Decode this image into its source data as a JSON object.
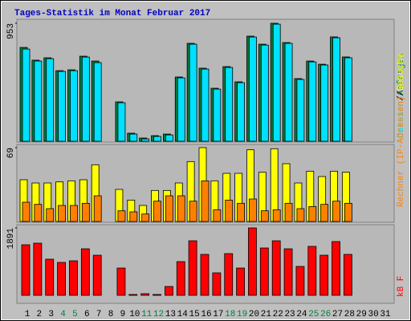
{
  "chart_data": [
    {
      "type": "bar",
      "title": "Tages-Statistik im Monat Februar 2017",
      "categories": [
        "1",
        "2",
        "3",
        "4",
        "5",
        "6",
        "7",
        "8",
        "9",
        "10",
        "11",
        "12",
        "13",
        "14",
        "15",
        "16",
        "17",
        "18",
        "19",
        "20",
        "21",
        "22",
        "23",
        "24",
        "25",
        "26",
        "27",
        "28",
        "29",
        "30",
        "31"
      ],
      "category_colors": [
        "#000000",
        "#000000",
        "#000000",
        "#008040",
        "#008040",
        "#000000",
        "#000000",
        "#000000",
        "#000000",
        "#000000",
        "#008040",
        "#008040",
        "#000000",
        "#000000",
        "#000000",
        "#000000",
        "#000000",
        "#008040",
        "#008040",
        "#000000",
        "#000000",
        "#000000",
        "#000000",
        "#000000",
        "#008040",
        "#008040",
        "#000000",
        "#000000",
        "#000000",
        "#000000",
        "#000000"
      ],
      "legend_separator": "/",
      "ylim": [
        0,
        953
      ],
      "yticks": [
        953
      ],
      "series": [
        {
          "name": "Anfragen",
          "color": "#008040",
          "values": [
            758,
            655,
            674,
            570,
            577,
            687,
            648,
            0,
            318,
            65,
            26,
            45,
            58,
            519,
            791,
            590,
            428,
            603,
            480,
            849,
            784,
            953,
            797,
            506,
            648,
            622,
            843,
            681,
            0,
            0,
            0
          ]
        },
        {
          "name": "Dateien",
          "color": "#00e0ff",
          "values": [
            745,
            648,
            667,
            564,
            570,
            680,
            635,
            0,
            311,
            58,
            19,
            39,
            51,
            512,
            784,
            583,
            421,
            596,
            473,
            842,
            777,
            946,
            791,
            499,
            641,
            616,
            836,
            674,
            0,
            0,
            0
          ]
        }
      ]
    },
    {
      "type": "bar",
      "legend_separator": "/",
      "ylim": [
        0,
        69
      ],
      "yticks": [
        69
      ],
      "series": [
        {
          "name": "Besuche",
          "color": "#ffff00",
          "values": [
            39,
            36,
            36,
            37,
            38,
            39,
            53,
            0,
            30,
            20,
            15,
            29,
            29,
            36,
            56,
            69,
            38,
            45,
            45,
            67,
            46,
            68,
            54,
            36,
            47,
            42,
            47,
            46,
            0,
            0,
            0
          ]
        },
        {
          "name": "Rechner (IP-Adressen)",
          "color": "#ff8000",
          "values": [
            18,
            16,
            12,
            15,
            15,
            17,
            24,
            0,
            10,
            9,
            7,
            19,
            24,
            24,
            19,
            38,
            11,
            20,
            17,
            21,
            10,
            11,
            17,
            12,
            14,
            16,
            19,
            17,
            0,
            0,
            0
          ]
        }
      ]
    },
    {
      "type": "bar",
      "ylim": [
        0,
        1891
      ],
      "yticks": [
        1891
      ],
      "series": [
        {
          "name": "kB F",
          "color": "#ff0000",
          "values": [
            1418,
            1463,
            1013,
            923,
            968,
            1305,
            1125,
            0,
            765,
            23,
            45,
            23,
            248,
            945,
            1530,
            1148,
            630,
            1170,
            765,
            1891,
            1328,
            1530,
            1305,
            810,
            1373,
            1125,
            1508,
            1148,
            0,
            0,
            0
          ]
        }
      ]
    }
  ]
}
